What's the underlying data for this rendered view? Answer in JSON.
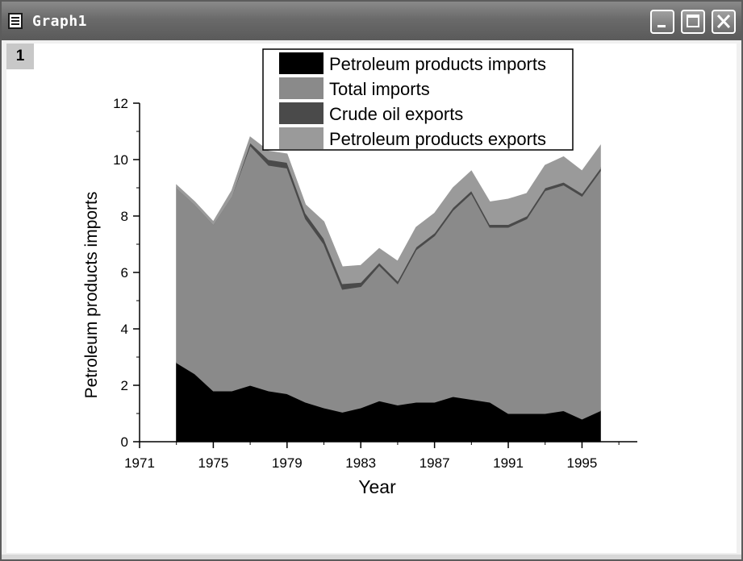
{
  "window": {
    "title": "Graph1",
    "layer_label": "1"
  },
  "colors": {
    "petroleum_imports": "#000000",
    "total_imports": "#8a8a8a",
    "crude_exports": "#4a4a4a",
    "petroleum_exports": "#9a9a9a",
    "titlebar": "#6a6a6a"
  },
  "chart_data": {
    "type": "area",
    "stacked": true,
    "xlabel": "Year",
    "ylabel": "Petroleum products imports",
    "xlim": [
      1971,
      1998
    ],
    "ylim": [
      0,
      12
    ],
    "xticks": [
      1971,
      1975,
      1979,
      1983,
      1987,
      1991,
      1995
    ],
    "yticks": [
      0,
      2,
      4,
      6,
      8,
      10,
      12
    ],
    "legend_position": "top-right",
    "x": [
      1973,
      1974,
      1975,
      1976,
      1977,
      1978,
      1979,
      1980,
      1981,
      1982,
      1983,
      1984,
      1985,
      1986,
      1987,
      1988,
      1989,
      1990,
      1991,
      1992,
      1993,
      1994,
      1995,
      1996
    ],
    "series": [
      {
        "name": "Petroleum products imports",
        "color_key": "petroleum_imports",
        "values": [
          2.8,
          2.4,
          1.8,
          1.8,
          2.0,
          1.8,
          1.7,
          1.4,
          1.2,
          1.05,
          1.2,
          1.45,
          1.3,
          1.4,
          1.4,
          1.6,
          1.5,
          1.4,
          1.0,
          1.0,
          1.0,
          1.1,
          0.8,
          1.1
        ]
      },
      {
        "name": "Total imports",
        "color_key": "total_imports",
        "values": [
          6.2,
          6.0,
          5.9,
          6.9,
          8.5,
          8.0,
          8.0,
          6.5,
          5.8,
          4.35,
          4.3,
          4.8,
          4.3,
          5.4,
          5.9,
          6.6,
          7.3,
          6.2,
          6.6,
          6.9,
          7.9,
          8.0,
          7.9,
          8.5
        ]
      },
      {
        "name": "Crude oil exports",
        "color_key": "crude_exports",
        "values": [
          0.0,
          0.0,
          0.0,
          0.0,
          0.1,
          0.2,
          0.2,
          0.2,
          0.2,
          0.2,
          0.15,
          0.1,
          0.1,
          0.1,
          0.1,
          0.1,
          0.1,
          0.1,
          0.1,
          0.1,
          0.1,
          0.1,
          0.1,
          0.1
        ]
      },
      {
        "name": "Petroleum products exports",
        "color_key": "petroleum_exports",
        "values": [
          0.1,
          0.1,
          0.1,
          0.2,
          0.2,
          0.3,
          0.3,
          0.3,
          0.6,
          0.6,
          0.6,
          0.5,
          0.7,
          0.7,
          0.7,
          0.7,
          0.7,
          0.8,
          0.9,
          0.8,
          0.8,
          0.9,
          0.8,
          0.8
        ]
      }
    ]
  }
}
